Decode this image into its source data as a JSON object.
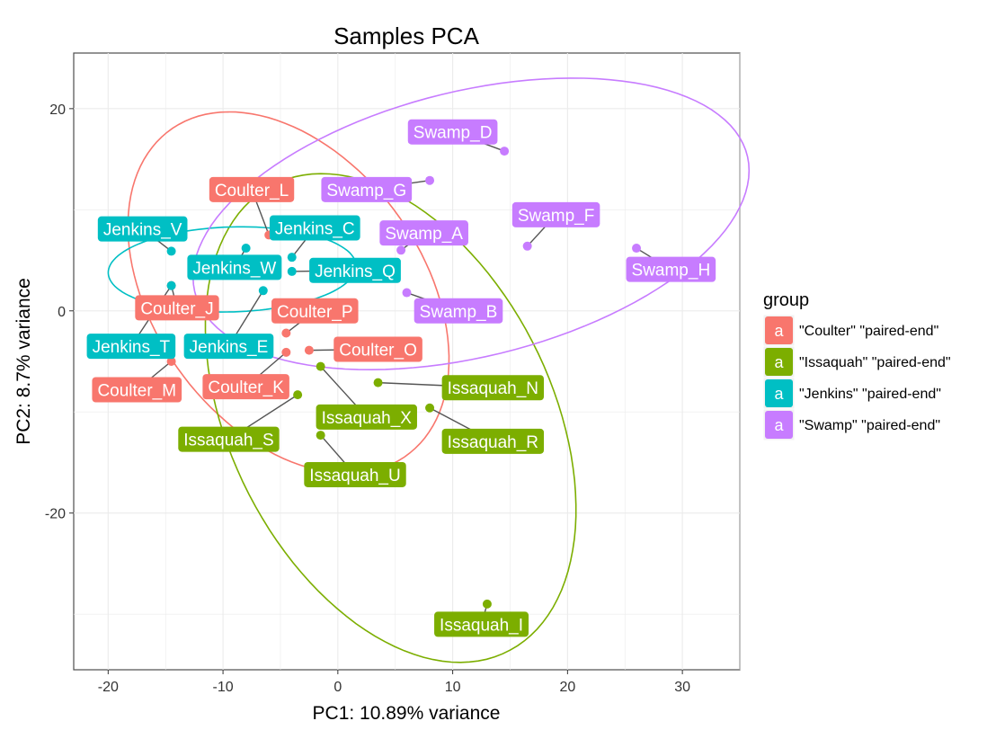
{
  "chart_data": {
    "type": "scatter",
    "title": "Samples PCA",
    "xlabel": "PC1: 10.89% variance",
    "ylabel": "PC2: 8.7% variance",
    "xlim": [
      -23,
      35
    ],
    "ylim": [
      -35.5,
      25.5
    ],
    "xticks": [
      -20,
      -10,
      0,
      10,
      20,
      30
    ],
    "yticks": [
      -20,
      0,
      20
    ],
    "grid": true,
    "legend": {
      "title": "group",
      "position": "right",
      "key_glyph": "a",
      "entries": [
        {
          "label": "\"Coulter\" \"paired-end\"",
          "color": "#F8766D"
        },
        {
          "label": "\"Issaquah\" \"paired-end\"",
          "color": "#7CAE00"
        },
        {
          "label": "\"Jenkins\" \"paired-end\"",
          "color": "#00BFC4"
        },
        {
          "label": "\"Swamp\" \"paired-end\"",
          "color": "#C77CFF"
        }
      ]
    },
    "ellipses": [
      {
        "group": 0,
        "cx": -4.3,
        "cy": 1.8,
        "rx": 19.2,
        "ry": 12.1,
        "angle": -62
      },
      {
        "group": 1,
        "cx": 4.6,
        "cy": -10.6,
        "rx": 25.3,
        "ry": 14.3,
        "angle": -69
      },
      {
        "group": 2,
        "cx": -9.2,
        "cy": 4.1,
        "rx": 10.8,
        "ry": 4.2,
        "angle": 2
      },
      {
        "group": 3,
        "cx": 11.6,
        "cy": 8.6,
        "rx": 25.0,
        "ry": 13.0,
        "angle": 17
      }
    ],
    "points": [
      {
        "name": "Coulter_L",
        "group": 0,
        "x": -6.0,
        "y": 7.5,
        "lx": -7.5,
        "ly": 12.0
      },
      {
        "name": "Coulter_J",
        "group": 0,
        "x": -14.5,
        "y": 2.5,
        "lx": -14.0,
        "ly": 0.3
      },
      {
        "name": "Coulter_P",
        "group": 0,
        "x": -4.5,
        "y": -2.2,
        "lx": -2.0,
        "ly": 0.0
      },
      {
        "name": "Coulter_O",
        "group": 0,
        "x": -2.5,
        "y": -3.9,
        "lx": 3.5,
        "ly": -3.8
      },
      {
        "name": "Coulter_M",
        "group": 0,
        "x": -14.5,
        "y": -5.0,
        "lx": -17.5,
        "ly": -7.8
      },
      {
        "name": "Coulter_K",
        "group": 0,
        "x": -4.5,
        "y": -4.1,
        "lx": -8.0,
        "ly": -7.5
      },
      {
        "name": "Issaquah_N",
        "group": 1,
        "x": 3.5,
        "y": -7.1,
        "lx": 13.5,
        "ly": -7.6
      },
      {
        "name": "Issaquah_X",
        "group": 1,
        "x": -1.5,
        "y": -5.5,
        "lx": 2.5,
        "ly": -10.5
      },
      {
        "name": "Issaquah_R",
        "group": 1,
        "x": 8.0,
        "y": -9.6,
        "lx": 13.5,
        "ly": -12.9
      },
      {
        "name": "Issaquah_S",
        "group": 1,
        "x": -3.5,
        "y": -8.3,
        "lx": -9.5,
        "ly": -12.7
      },
      {
        "name": "Issaquah_U",
        "group": 1,
        "x": -1.5,
        "y": -12.3,
        "lx": 1.5,
        "ly": -16.2
      },
      {
        "name": "Issaquah_I",
        "group": 1,
        "x": 13.0,
        "y": -29.0,
        "lx": 12.5,
        "ly": -31.0
      },
      {
        "name": "Jenkins_V",
        "group": 2,
        "x": -14.5,
        "y": 5.9,
        "lx": -17.0,
        "ly": 8.1
      },
      {
        "name": "Jenkins_C",
        "group": 2,
        "x": -4.0,
        "y": 5.3,
        "lx": -2.0,
        "ly": 8.2
      },
      {
        "name": "Jenkins_W",
        "group": 2,
        "x": -8.0,
        "y": 6.2,
        "lx": -9.0,
        "ly": 4.3
      },
      {
        "name": "Jenkins_Q",
        "group": 2,
        "x": -4.0,
        "y": 3.9,
        "lx": 1.5,
        "ly": 4.0
      },
      {
        "name": "Jenkins_T",
        "group": 2,
        "x": -14.5,
        "y": 2.5,
        "lx": -18.0,
        "ly": -3.5
      },
      {
        "name": "Jenkins_E",
        "group": 2,
        "x": -6.5,
        "y": 2.0,
        "lx": -9.5,
        "ly": -3.5
      },
      {
        "name": "Swamp_D",
        "group": 3,
        "x": 14.5,
        "y": 15.8,
        "lx": 10.0,
        "ly": 17.7
      },
      {
        "name": "Swamp_G",
        "group": 3,
        "x": 8.0,
        "y": 12.9,
        "lx": 2.5,
        "ly": 12.0
      },
      {
        "name": "Swamp_F",
        "group": 3,
        "x": 16.5,
        "y": 6.4,
        "lx": 19.0,
        "ly": 9.5
      },
      {
        "name": "Swamp_A",
        "group": 3,
        "x": 5.5,
        "y": 6.0,
        "lx": 7.5,
        "ly": 7.7
      },
      {
        "name": "Swamp_H",
        "group": 3,
        "x": 26.0,
        "y": 6.2,
        "lx": 29.0,
        "ly": 4.1
      },
      {
        "name": "Swamp_B",
        "group": 3,
        "x": 6.0,
        "y": 1.8,
        "lx": 10.5,
        "ly": 0.0
      }
    ]
  }
}
